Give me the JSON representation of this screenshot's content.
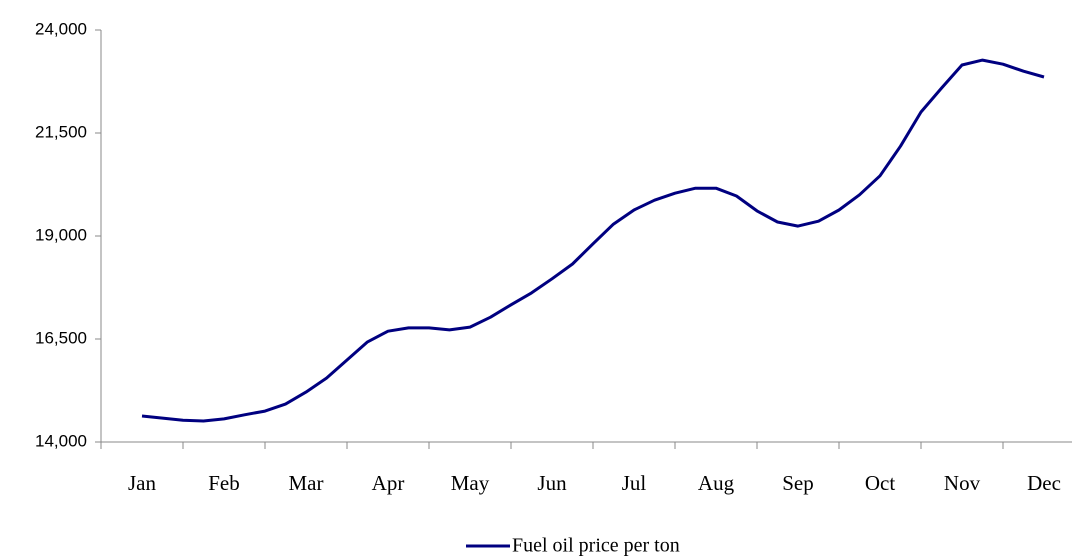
{
  "chart_data": {
    "type": "line",
    "categories": [
      "Jan",
      null,
      null,
      null,
      "Feb",
      null,
      null,
      null,
      "Mar",
      null,
      null,
      null,
      "Apr",
      null,
      null,
      null,
      "May",
      null,
      null,
      null,
      "Jun",
      null,
      null,
      null,
      "Jul",
      null,
      null,
      null,
      "Aug",
      null,
      null,
      null,
      "Sep",
      null,
      null,
      null,
      "Oct",
      null,
      null,
      null,
      "Nov",
      null,
      null,
      null,
      "Dec"
    ],
    "series": [
      {
        "name": "Fuel oil price per ton",
        "color": "#000080",
        "values": [
          14630,
          14580,
          14530,
          14510,
          14560,
          14660,
          14750,
          14920,
          15210,
          15550,
          15990,
          16430,
          16690,
          16770,
          16770,
          16720,
          16790,
          17030,
          17330,
          17620,
          17960,
          18320,
          18810,
          19290,
          19630,
          19870,
          20040,
          20160,
          20160,
          19970,
          19610,
          19340,
          19240,
          19360,
          19630,
          20000,
          20460,
          21180,
          22010,
          22590,
          23150,
          23270,
          23170,
          23000,
          22860
        ]
      }
    ],
    "ylim": [
      14000,
      24000
    ],
    "yticks": [
      {
        "value": 14000,
        "label": "14,000"
      },
      {
        "value": 16500,
        "label": "16,500"
      },
      {
        "value": 19000,
        "label": "19,000"
      },
      {
        "value": 21500,
        "label": "21,500"
      },
      {
        "value": 24000,
        "label": "24,000"
      }
    ],
    "grid": false,
    "legend": "bottom"
  }
}
